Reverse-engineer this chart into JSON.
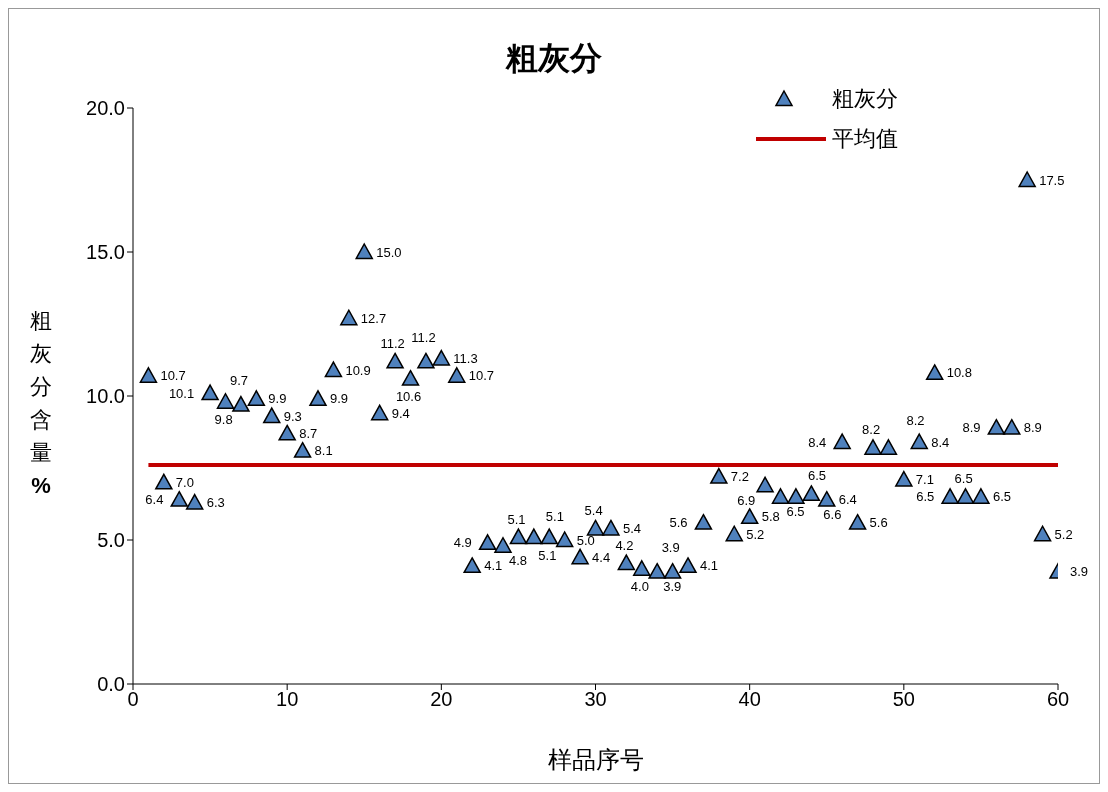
{
  "chart_data": {
    "type": "scatter",
    "title": "粗灰分",
    "xlabel": "样品序号",
    "ylabel": "粗灰分含量%",
    "x": [
      1,
      2,
      3,
      4,
      5,
      6,
      7,
      8,
      9,
      10,
      11,
      12,
      13,
      14,
      15,
      16,
      17,
      18,
      19,
      20,
      21,
      22,
      23,
      24,
      25,
      26,
      27,
      28,
      29,
      30,
      31,
      32,
      33,
      34,
      35,
      36,
      37,
      38,
      39,
      40,
      41,
      42,
      43,
      44,
      45,
      46,
      47,
      48,
      49,
      50,
      51,
      52,
      53,
      54,
      55,
      56,
      57,
      58,
      59,
      60
    ],
    "series": [
      {
        "name": "粗灰分",
        "color": "#4f81bd",
        "marker": "triangle",
        "values": [
          10.7,
          7.0,
          6.4,
          6.3,
          10.1,
          9.8,
          9.7,
          9.9,
          9.3,
          8.7,
          8.1,
          9.9,
          10.9,
          12.7,
          15.0,
          9.4,
          11.2,
          10.6,
          11.2,
          11.3,
          10.7,
          4.1,
          4.9,
          4.8,
          5.1,
          5.1,
          5.1,
          5.0,
          4.4,
          5.4,
          5.4,
          4.2,
          4.0,
          3.9,
          3.9,
          4.1,
          5.6,
          7.2,
          5.2,
          5.8,
          6.9,
          6.5,
          6.5,
          6.6,
          6.4,
          8.4,
          5.6,
          8.2,
          8.2,
          7.1,
          8.4,
          10.8,
          6.5,
          6.5,
          6.5,
          8.9,
          8.9,
          17.5,
          5.2,
          3.9
        ],
        "value_labels": [
          "10.7",
          "7.0",
          "6.4",
          "6.3",
          "10.1",
          "9.8",
          "9.7",
          "9.9",
          "9.3",
          "8.7",
          "8.1",
          "9.9",
          "10.9",
          "12.7",
          "15.0",
          "9.4",
          "11.2",
          "10.6",
          "11.2",
          "11.3",
          "10.7",
          "4.1",
          "4.9",
          "4.8",
          "5.1",
          "5.1",
          "5.1",
          "5.0",
          "4.4",
          "5.4",
          "5.4",
          "4.2",
          "4.0",
          "3.9",
          "3.9",
          "4.1",
          "5.6",
          "7.2",
          "5.2",
          "5.8",
          "6.9",
          "6.5",
          "6.5",
          "6.6",
          "6.4",
          "8.4",
          "5.6",
          "8.2",
          "8.2",
          "7.1",
          "8.4",
          "10.8",
          "6.5",
          "6.5",
          "6.5",
          "8.9",
          "8.9",
          "17.5",
          "5.2",
          "3.9"
        ]
      },
      {
        "name": "平均值",
        "type": "line",
        "color": "#c00000",
        "marker": "none",
        "x": [
          1,
          60
        ],
        "values": [
          7.6,
          7.6
        ]
      }
    ],
    "xlim": [
      0,
      60
    ],
    "xticks": [
      0,
      10,
      20,
      30,
      40,
      50,
      60
    ],
    "ylim": [
      0,
      20
    ],
    "yticks": [
      {
        "value": 0,
        "label": "0.0"
      },
      {
        "value": 5,
        "label": "5.0"
      },
      {
        "value": 10,
        "label": "10.0"
      },
      {
        "value": 15,
        "label": "15.0"
      },
      {
        "value": 20,
        "label": "20.0"
      }
    ],
    "grid": false,
    "legend": "top right"
  }
}
